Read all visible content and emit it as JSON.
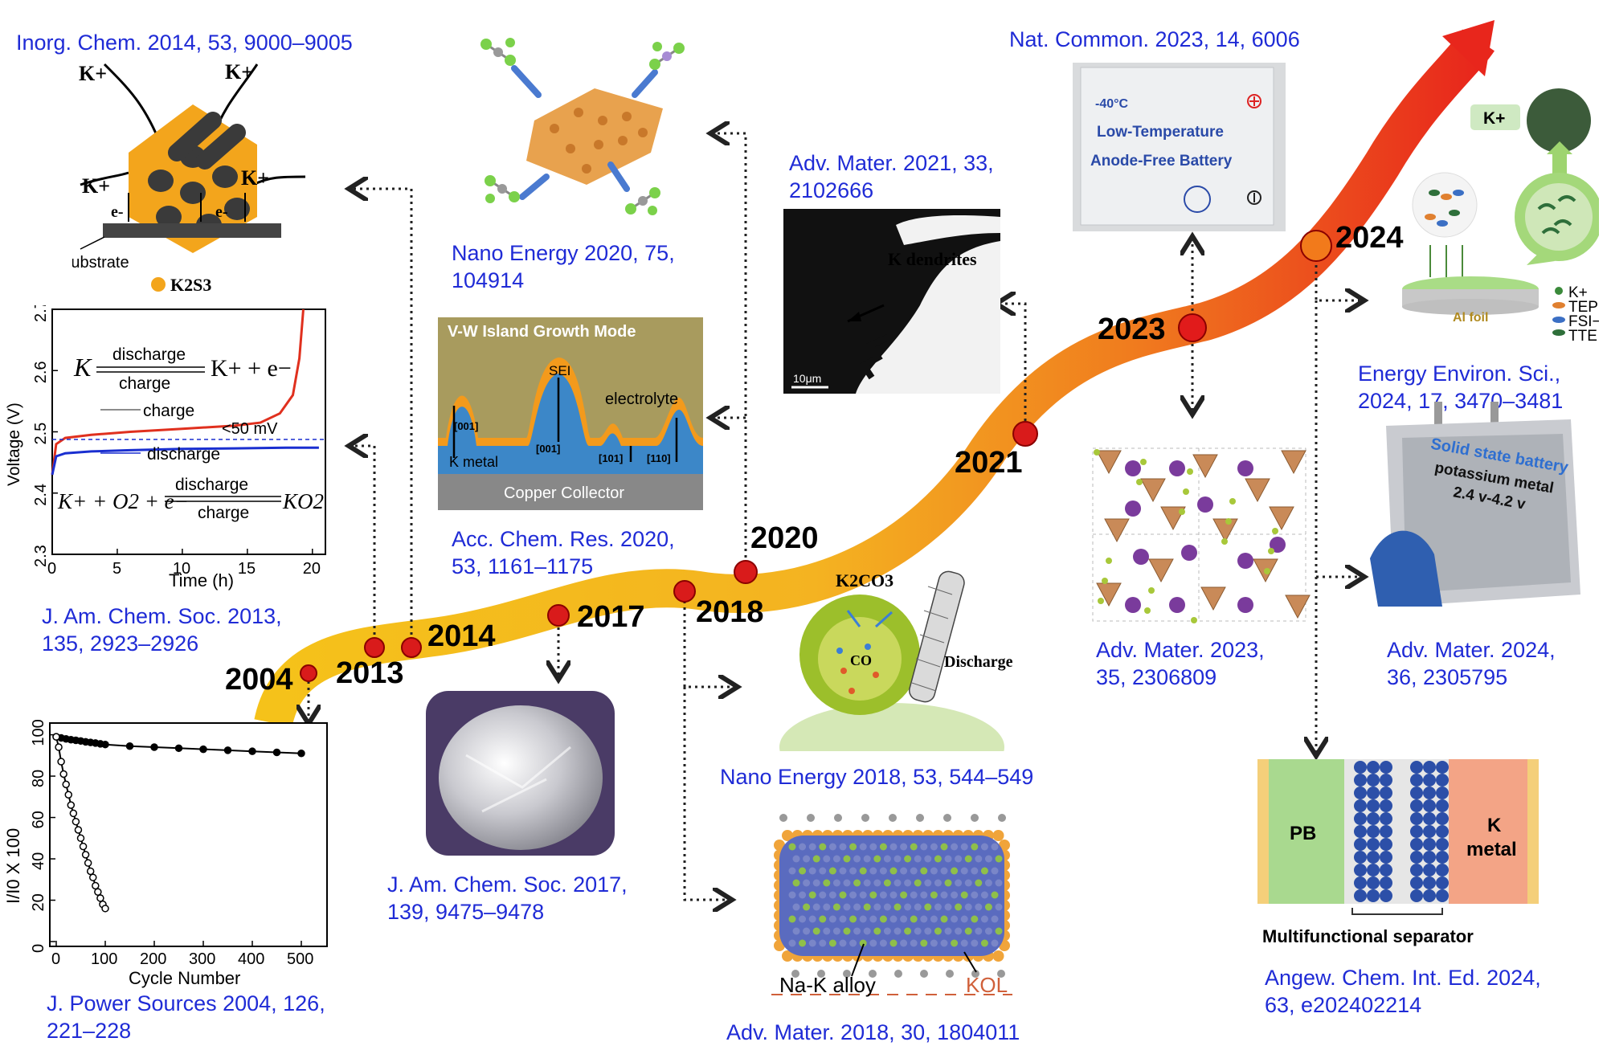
{
  "timeline": {
    "years": [
      "2004",
      "2013",
      "2014",
      "2017",
      "2018",
      "2020",
      "2021",
      "2023",
      "2024"
    ]
  },
  "references": {
    "r2004": "J. Power Sources 2004, 126,",
    "r2004b": "221–228",
    "r2013": "J. Am. Chem. Soc. 2013,",
    "r2013b": "135, 2923–2926",
    "r2014": "Inorg. Chem. 2014, 53, 9000–9005",
    "r2017": "J. Am. Chem. Soc. 2017,",
    "r2017b": "139, 9475–9478",
    "r2018a": "Nano Energy 2018, 53, 544–549",
    "r2018b": "Adv. Mater. 2018, 30, 1804011",
    "r2020a": "Nano Energy 2020, 75,",
    "r2020a2": "104914",
    "r2020b": "Acc. Chem. Res. 2020,",
    "r2020b2": "53, 1161–1175",
    "r2021": "Adv. Mater. 2021, 33,",
    "r2021b": "2102666",
    "r2023a": "Nat. Common. 2023, 14, 6006",
    "r2023b": "Adv. Mater. 2023,",
    "r2023b2": "35, 2306809",
    "r2024a": "Energy Environ. Sci.,",
    "r2024a2": "2024, 17, 3470–3481",
    "r2024b": "Adv. Mater. 2024,",
    "r2024b2": "36, 2305795",
    "r2024c": "Angew. Chem. Int. Ed. 2024,",
    "r2024c2": "63, e202402214"
  },
  "panel_2014": {
    "k_plus": "K+",
    "e_minus": "e-",
    "substrate": "Substrate",
    "legend": "K2S3"
  },
  "panel_2013": {
    "eq1_left": "K",
    "eq1_top": "discharge",
    "eq1_bottom": "charge",
    "eq1_right": "K+ + e−",
    "charge": "charge",
    "discharge": "discharge",
    "gap": "<50 mV",
    "eq2_left": "K+ + O2 + e−",
    "eq2_top": "discharge",
    "eq2_bottom": "charge",
    "eq2_right": "KO2",
    "ylabel": "Voltage (V)",
    "xlabel": "Time (h)",
    "yticks": [
      "2.3",
      "2.4",
      "2.5",
      "2.6",
      "2.7"
    ],
    "xticks": [
      "0",
      "5",
      "10",
      "15",
      "20"
    ]
  },
  "panel_2004": {
    "ylabel": "I/I0 X 100",
    "xlabel": "Cycle Number",
    "yticks": [
      "0",
      "20",
      "40",
      "60",
      "80",
      "100"
    ],
    "xticks": [
      "0",
      "100",
      "200",
      "300",
      "400",
      "500"
    ]
  },
  "panel_2020b": {
    "title": "V-W Island Growth Mode",
    "sei": "SEI",
    "electrolyte": "electrolyte",
    "kmetal": "K metal",
    "collector": "Copper Collector",
    "f001a": "[001]",
    "f001b": "[001]",
    "f101": "[101]",
    "f110": "[110]"
  },
  "panel_2018a": {
    "k2co3": "K2CO3",
    "co": "CO",
    "discharge": "Discharge"
  },
  "panel_2018b": {
    "alloy": "Na-K alloy",
    "kol": "KOL"
  },
  "panel_2021": {
    "label": "K dendrites",
    "scale": "10μm"
  },
  "panel_2023a": {
    "temp": "-40°C",
    "line1": "Low-Temperature",
    "line2": "Anode-Free Battery"
  },
  "panel_2024a": {
    "kplus": "K+",
    "foil": "Al foil",
    "l1": "K+",
    "l2": "TEP",
    "l3": "FSI−",
    "l4": "TTE"
  },
  "panel_2024b": {
    "line1": "Solid state battery",
    "line2": "potassium metal",
    "line3": "2.4 v-4.2 v"
  },
  "panel_2024c": {
    "pb": "PB",
    "k": "K",
    "metal": "metal",
    "caption": "Multifunctional separator"
  },
  "chart_data": [
    {
      "type": "line",
      "title": "",
      "xlabel": "Time (h)",
      "ylabel": "Voltage (V)",
      "xlim": [
        0,
        21
      ],
      "ylim": [
        2.3,
        2.7
      ],
      "series": [
        {
          "name": "charge",
          "color": "#e0301e",
          "x": [
            0,
            0.3,
            1,
            3,
            6,
            10,
            14,
            16,
            17.5,
            18.5,
            19,
            19.3
          ],
          "y": [
            2.43,
            2.48,
            2.49,
            2.495,
            2.5,
            2.505,
            2.51,
            2.515,
            2.53,
            2.56,
            2.62,
            2.7
          ]
        },
        {
          "name": "discharge",
          "color": "#1a2fd0",
          "x": [
            0,
            0.3,
            1,
            3,
            6,
            10,
            14,
            18,
            20.5
          ],
          "y": [
            2.43,
            2.46,
            2.465,
            2.468,
            2.47,
            2.472,
            2.473,
            2.474,
            2.474
          ]
        }
      ]
    },
    {
      "type": "line",
      "title": "",
      "xlabel": "Cycle Number",
      "ylabel": "I/I0 X 100",
      "xlim": [
        0,
        500
      ],
      "ylim": [
        0,
        100
      ],
      "series": [
        {
          "marker": "filled",
          "x": [
            0,
            10,
            20,
            30,
            40,
            50,
            60,
            70,
            80,
            90,
            100,
            150,
            200,
            250,
            300,
            350,
            400,
            450,
            500
          ],
          "y": [
            99,
            98.5,
            98,
            97.6,
            97.3,
            97,
            96.6,
            96.3,
            96,
            95.6,
            95.3,
            94.5,
            94,
            93.5,
            93,
            92.5,
            92,
            91.5,
            91
          ]
        },
        {
          "marker": "open",
          "x": [
            0,
            5,
            10,
            15,
            20,
            25,
            30,
            35,
            40,
            45,
            50,
            55,
            60,
            65,
            70,
            75,
            80,
            85,
            90,
            95,
            100
          ],
          "y": [
            99,
            94,
            87,
            81,
            76,
            71,
            66,
            62,
            58,
            54,
            50,
            46,
            42,
            38,
            34,
            31,
            27,
            24,
            21,
            18,
            16
          ]
        }
      ]
    }
  ]
}
